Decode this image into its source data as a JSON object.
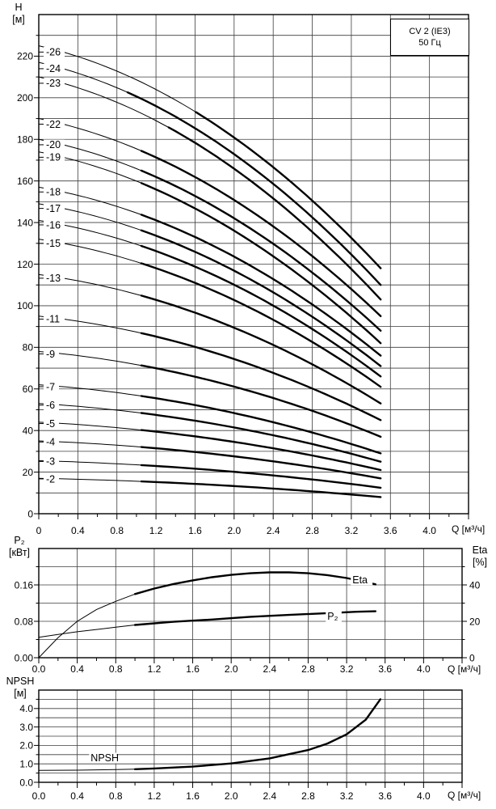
{
  "title_box": {
    "model": "CV 2 (IE3)",
    "frequency": "50 Гц"
  },
  "axes_text": {
    "head_axis_symbol": "H",
    "head_axis_unit": "[м]",
    "flow_axis_label": "Q [м³/ч]",
    "power_axis_symbol": "P₂",
    "power_axis_unit": "[кВт]",
    "eta_axis_symbol": "Eta",
    "eta_axis_unit": "[%]",
    "npsh_axis_symbol": "NPSH",
    "npsh_axis_unit": "[м]"
  },
  "colors": {
    "line": "#000000",
    "grid": "#3c3c3c",
    "background": "#ffffff"
  },
  "chart_data": [
    {
      "type": "line",
      "id": "qh-curves",
      "title": "CV 2 (IE3) 50 Гц",
      "xlabel": "Q [м³/ч]",
      "ylabel": "H [м]",
      "xlim": [
        0,
        4.4
      ],
      "ylim": [
        0,
        240
      ],
      "grid": true,
      "x_grid_step": 0.4,
      "y_grid_step": 10,
      "x_tick_values": [
        0,
        0.4,
        0.8,
        1.2,
        1.6,
        2.0,
        2.4,
        2.8,
        3.2,
        3.6,
        4.0
      ],
      "x_tick_labels": [
        "0",
        "0.4",
        "0.8",
        "1.2",
        "1.6",
        "2.0",
        "2.4",
        "2.8",
        "3.2",
        "3.6",
        "4.0"
      ],
      "y_tick_values": [
        0,
        20,
        40,
        60,
        80,
        100,
        120,
        140,
        160,
        180,
        200,
        220
      ],
      "y_tick_labels": [
        "0",
        "20",
        "40",
        "60",
        "80",
        "100",
        "120",
        "140",
        "160",
        "180",
        "200",
        "220"
      ],
      "q_start": 0,
      "q_end": 3.5,
      "series": [
        {
          "name": "-26",
          "stages": 26,
          "head_at_q0": 225,
          "head_at_q3_5": 118,
          "bold_from_q": 1.61
        },
        {
          "name": "-24",
          "stages": 24,
          "head_at_q0": 217,
          "head_at_q3_5": 110,
          "bold_from_q": 0.91
        },
        {
          "name": "-23",
          "stages": 23,
          "head_at_q0": 210,
          "head_at_q3_5": 103,
          "bold_from_q": 1.33
        },
        {
          "name": "-22",
          "stages": 22,
          "head_at_q0": 190,
          "head_at_q3_5": 95,
          "bold_from_q": 1.05
        },
        {
          "name": "-20",
          "stages": 20,
          "head_at_q0": 180,
          "head_at_q3_5": 88,
          "bold_from_q": 1.05
        },
        {
          "name": "-19",
          "stages": 19,
          "head_at_q0": 174,
          "head_at_q3_5": 82,
          "bold_from_q": 1.05
        },
        {
          "name": "-18",
          "stages": 18,
          "head_at_q0": 157,
          "head_at_q3_5": 76,
          "bold_from_q": 1.05
        },
        {
          "name": "-17",
          "stages": 17,
          "head_at_q0": 149,
          "head_at_q3_5": 71,
          "bold_from_q": 1.05
        },
        {
          "name": "-16",
          "stages": 16,
          "head_at_q0": 141,
          "head_at_q3_5": 66,
          "bold_from_q": 1.05
        },
        {
          "name": "-15",
          "stages": 15,
          "head_at_q0": 132,
          "head_at_q3_5": 61,
          "bold_from_q": 1.05
        },
        {
          "name": "-13",
          "stages": 13,
          "head_at_q0": 115,
          "head_at_q3_5": 53,
          "bold_from_q": 1.05
        },
        {
          "name": "-11",
          "stages": 11,
          "head_at_q0": 95,
          "head_at_q3_5": 45,
          "bold_from_q": 1.05
        },
        {
          "name": "-9",
          "stages": 9,
          "head_at_q0": 78,
          "head_at_q3_5": 37,
          "bold_from_q": 1.05
        },
        {
          "name": "-7",
          "stages": 7,
          "head_at_q0": 62,
          "head_at_q3_5": 29,
          "bold_from_q": 1.05
        },
        {
          "name": "-6",
          "stages": 6,
          "head_at_q0": 53,
          "head_at_q3_5": 25,
          "bold_from_q": 1.05
        },
        {
          "name": "-5",
          "stages": 5,
          "head_at_q0": 44,
          "head_at_q3_5": 21,
          "bold_from_q": 1.05
        },
        {
          "name": "-4",
          "stages": 4,
          "head_at_q0": 35,
          "head_at_q3_5": 17,
          "bold_from_q": 1.05
        },
        {
          "name": "-3",
          "stages": 3,
          "head_at_q0": 25.5,
          "head_at_q3_5": 12.5,
          "bold_from_q": 1.05
        },
        {
          "name": "-2",
          "stages": 2,
          "head_at_q0": 17,
          "head_at_q3_5": 8,
          "bold_from_q": 1.05
        }
      ]
    },
    {
      "type": "line",
      "id": "power-efficiency",
      "xlabel": "Q [м³/ч]",
      "ylabel_left": "P₂ [кВт]",
      "ylabel_right": "Eta [%]",
      "xlim": [
        0,
        4.4
      ],
      "ylim_left": [
        0,
        0.24
      ],
      "ylim_right": [
        0,
        60
      ],
      "x_grid_step": 0.4,
      "y_grid_step_left": 0.04,
      "x_tick_values": [
        0,
        0.4,
        0.8,
        1.2,
        1.6,
        2.0,
        2.4,
        2.8,
        3.2,
        3.6,
        4.0
      ],
      "x_tick_labels": [
        "0.0",
        "0.4",
        "0.8",
        "1.2",
        "1.6",
        "2.0",
        "2.4",
        "2.8",
        "3.2",
        "3.6",
        "4.0"
      ],
      "left_tick_values": [
        0,
        0.08,
        0.16
      ],
      "left_tick_labels": [
        "0.00",
        "0.08",
        "0.16"
      ],
      "right_tick_values": [
        0,
        20,
        40
      ],
      "right_tick_labels": [
        "0",
        "20",
        "40"
      ],
      "series": [
        {
          "name": "Eta",
          "label": "Eta",
          "axis": "right",
          "bold_from_q": 1.0,
          "x": [
            0,
            0.2,
            0.4,
            0.6,
            0.8,
            1.0,
            1.2,
            1.4,
            1.6,
            1.8,
            2.0,
            2.2,
            2.4,
            2.6,
            2.8,
            3.0,
            3.2,
            3.4,
            3.5
          ],
          "y": [
            0,
            11,
            20,
            26.5,
            31,
            35,
            38,
            40.5,
            42.5,
            44.2,
            45.5,
            46.4,
            46.9,
            46.9,
            46.4,
            45.4,
            43.8,
            41.6,
            40.3
          ],
          "label_at": [
            3.26,
            41
          ]
        },
        {
          "name": "P₂",
          "label": "P₂",
          "axis": "left",
          "bold_from_q": 1.0,
          "x": [
            0,
            0.2,
            0.4,
            0.6,
            0.8,
            1.0,
            1.4,
            1.8,
            2.2,
            2.6,
            3.0,
            3.3,
            3.5
          ],
          "y": [
            0.045,
            0.051,
            0.057,
            0.062,
            0.067,
            0.072,
            0.079,
            0.084,
            0.09,
            0.094,
            0.098,
            0.101,
            0.102
          ],
          "label_at": [
            3.0,
            0.0835
          ]
        }
      ]
    },
    {
      "type": "line",
      "id": "npsh",
      "xlabel": "Q [м³/ч]",
      "ylabel": "NPSH [м]",
      "xlim": [
        0,
        4.4
      ],
      "ylim": [
        0,
        5
      ],
      "x_grid_step": 0.4,
      "y_grid_step": 0.5,
      "x_tick_values": [
        0,
        0.4,
        0.8,
        1.2,
        1.6,
        2.0,
        2.4,
        2.8,
        3.2,
        3.6,
        4.0
      ],
      "x_tick_labels": [
        "0.0",
        "0.4",
        "0.8",
        "1.2",
        "1.6",
        "2.0",
        "2.4",
        "2.8",
        "3.2",
        "3.6",
        "4.0"
      ],
      "y_tick_values": [
        0,
        1,
        2,
        3,
        4
      ],
      "y_tick_labels": [
        "0.0",
        "1.0",
        "2.0",
        "3.0",
        "4.0"
      ],
      "series": [
        {
          "name": "NPSH",
          "label": "NPSH",
          "bold_from_q": 1.0,
          "x": [
            0,
            0.4,
            0.8,
            1.0,
            1.2,
            1.6,
            2.0,
            2.4,
            2.8,
            3.0,
            3.2,
            3.4,
            3.55
          ],
          "y": [
            0.65,
            0.66,
            0.69,
            0.71,
            0.75,
            0.85,
            1.02,
            1.3,
            1.75,
            2.1,
            2.6,
            3.4,
            4.5
          ],
          "label_at": [
            0.54,
            1.14
          ]
        }
      ]
    }
  ]
}
